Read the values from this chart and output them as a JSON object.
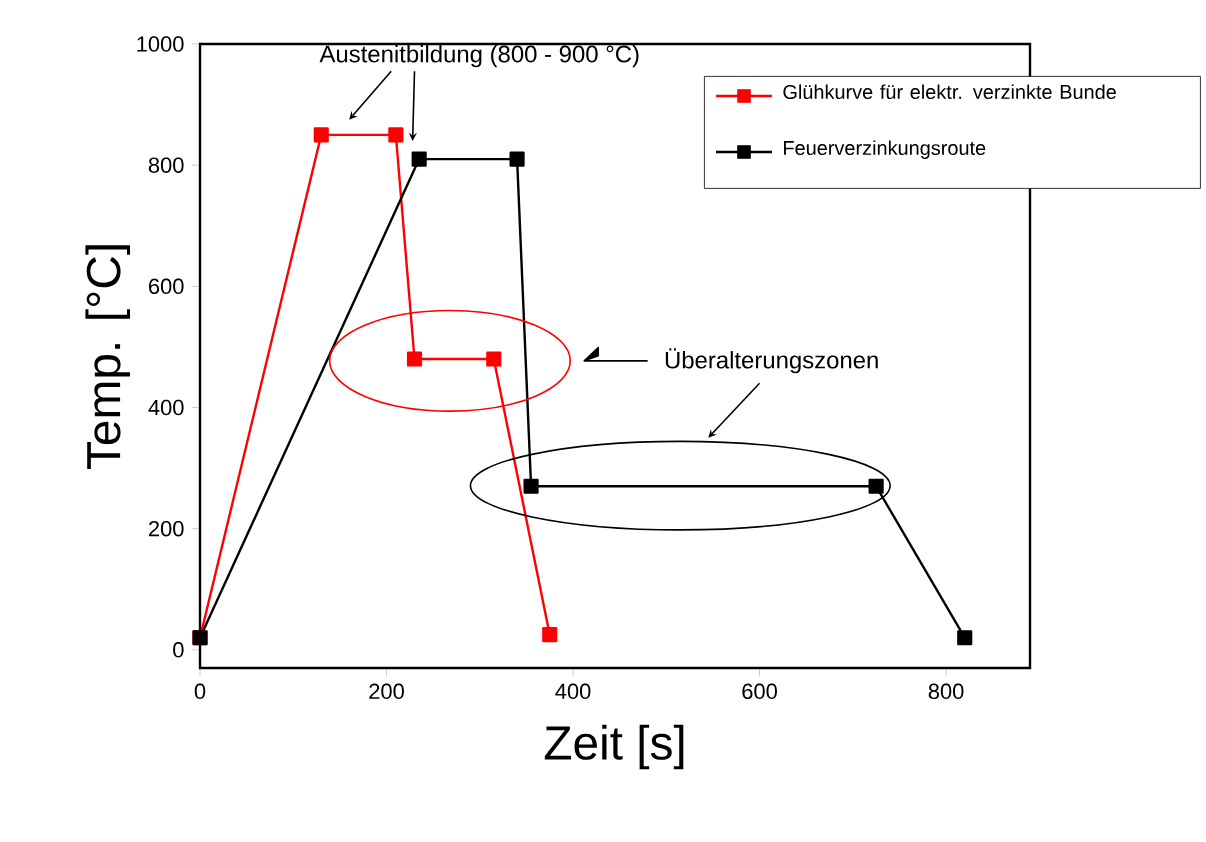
{
  "chart_data": {
    "type": "line",
    "xlabel": "Zeit [s]",
    "ylabel": "Temp. [°C]",
    "xlim": [
      0,
      890
    ],
    "ylim": [
      -30,
      1000
    ],
    "xticks": [
      0,
      200,
      400,
      600,
      800
    ],
    "yticks": [
      0,
      200,
      400,
      600,
      800,
      1000
    ],
    "marker": "square",
    "line_style": "solid",
    "legend": "top right",
    "grid": false,
    "annotations": [
      "Austenitbildung (800 - 900 °C)",
      "Überalterungszonen"
    ],
    "series": [
      {
        "name": "Glühkurve für elektr. verzinkte Bunde",
        "color": "#ff0000",
        "x": [
          0,
          130,
          210,
          230,
          315,
          375
        ],
        "values": [
          20,
          850,
          850,
          480,
          480,
          25
        ]
      },
      {
        "name": "Feuerverzinkungsroute",
        "color": "#000000",
        "x": [
          0,
          235,
          340,
          355,
          725,
          820
        ],
        "values": [
          20,
          810,
          810,
          270,
          270,
          20
        ]
      }
    ]
  }
}
